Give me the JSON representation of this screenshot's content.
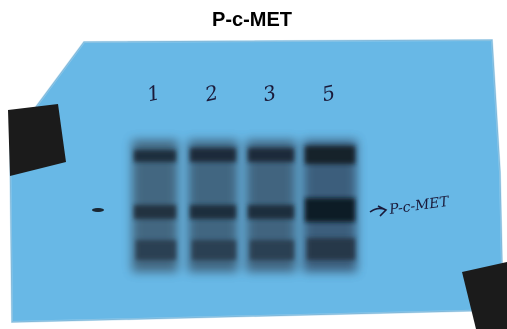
{
  "title": "P-c-MET",
  "blot": {
    "lanes": [
      {
        "label": "1"
      },
      {
        "label": "2"
      },
      {
        "label": "3"
      },
      {
        "label": "5"
      }
    ],
    "annotation": "P-c-MET"
  }
}
